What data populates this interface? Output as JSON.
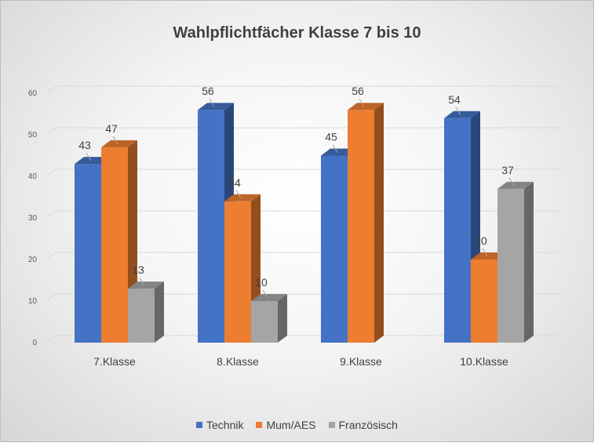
{
  "chart_data": {
    "type": "bar",
    "title": "Wahlpflichtfächer Klasse 7 bis 10",
    "categories": [
      "7.Klasse",
      "8.Klasse",
      "9.Klasse",
      "10.Klasse"
    ],
    "series": [
      {
        "name": "Technik",
        "color": "#4472C4",
        "values": [
          43,
          56,
          45,
          54
        ]
      },
      {
        "name": "Mum/AES",
        "color": "#ED7D31",
        "values": [
          47,
          34,
          56,
          20
        ]
      },
      {
        "name": "Französisch",
        "color": "#A5A5A5",
        "values": [
          13,
          10,
          null,
          37
        ]
      }
    ],
    "ylim": [
      0,
      60
    ],
    "yticks": [
      0,
      10,
      20,
      30,
      40,
      50,
      60
    ],
    "grid": true,
    "legend_position": "bottom",
    "style": "3d-clustered-column"
  }
}
